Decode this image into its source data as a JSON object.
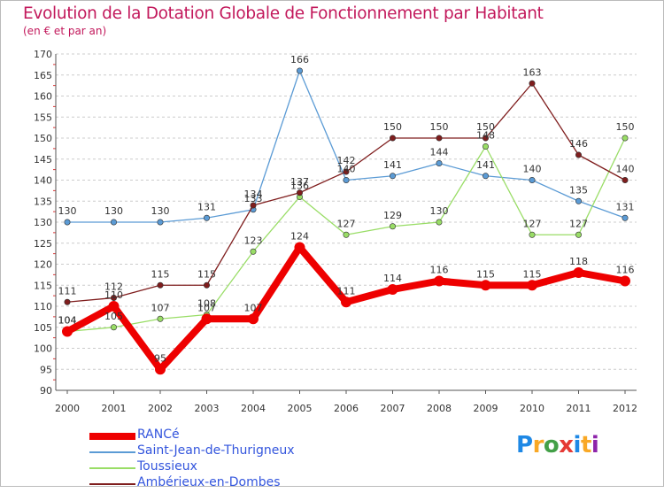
{
  "title": "Evolution de la Dotation Globale de Fonctionnement par Habitant",
  "subtitle": "(en € et par an)",
  "logo": {
    "text": "Proxiti",
    "letter_colors": [
      "#1e88e5",
      "#f9a825",
      "#43a047",
      "#e53935",
      "#1e88e5",
      "#f9a825",
      "#8e24aa"
    ]
  },
  "chart_data": {
    "type": "line",
    "title": "Evolution de la Dotation Globale de Fonctionnement par Habitant",
    "subtitle": "(en € et par an)",
    "x": [
      "2000",
      "2001",
      "2002",
      "2003",
      "2004",
      "2005",
      "2006",
      "2007",
      "2008",
      "2009",
      "2010",
      "2011",
      "2012"
    ],
    "ylim": [
      90,
      170
    ],
    "yticks": [
      90,
      95,
      100,
      105,
      110,
      115,
      120,
      125,
      130,
      135,
      140,
      145,
      150,
      155,
      160,
      165,
      170
    ],
    "grid": "horizontal dashed",
    "legend_position": "bottom-left",
    "series": [
      {
        "name": "RANCé",
        "color": "#ee0000",
        "values": [
          104,
          110,
          95,
          107,
          107,
          124,
          111,
          114,
          116,
          115,
          115,
          118,
          116
        ]
      },
      {
        "name": "Saint-Jean-de-Thurigneux",
        "color": "#5b9bd5",
        "values": [
          130,
          130,
          130,
          131,
          133,
          166,
          140,
          141,
          144,
          141,
          140,
          135,
          131
        ]
      },
      {
        "name": "Toussieux",
        "color": "#99dd66",
        "values": [
          104,
          105,
          107,
          108,
          123,
          136,
          127,
          129,
          130,
          148,
          127,
          127,
          150
        ]
      },
      {
        "name": "Ambérieux-en-Dombes",
        "color": "#7f1d1d",
        "values": [
          111,
          112,
          115,
          115,
          134,
          137,
          142,
          150,
          150,
          150,
          163,
          146,
          140
        ]
      }
    ],
    "data_labels": [
      [
        "104",
        "110",
        "95",
        "107",
        "107",
        "124",
        "111",
        "114",
        "116",
        "115",
        "115",
        "118",
        "116"
      ],
      [
        "130",
        "130",
        "130",
        "131",
        "133",
        "166",
        "140",
        "141",
        "144",
        "141",
        "140",
        "135",
        "131"
      ],
      [
        "104",
        "105",
        "107",
        "108",
        "123",
        "136",
        "127",
        "129",
        "130",
        "148",
        "127",
        "127",
        "150"
      ],
      [
        "111",
        "112",
        "115",
        "115",
        "134",
        "137",
        "142",
        "150",
        "150",
        "150",
        "163",
        "146",
        "140"
      ]
    ]
  }
}
